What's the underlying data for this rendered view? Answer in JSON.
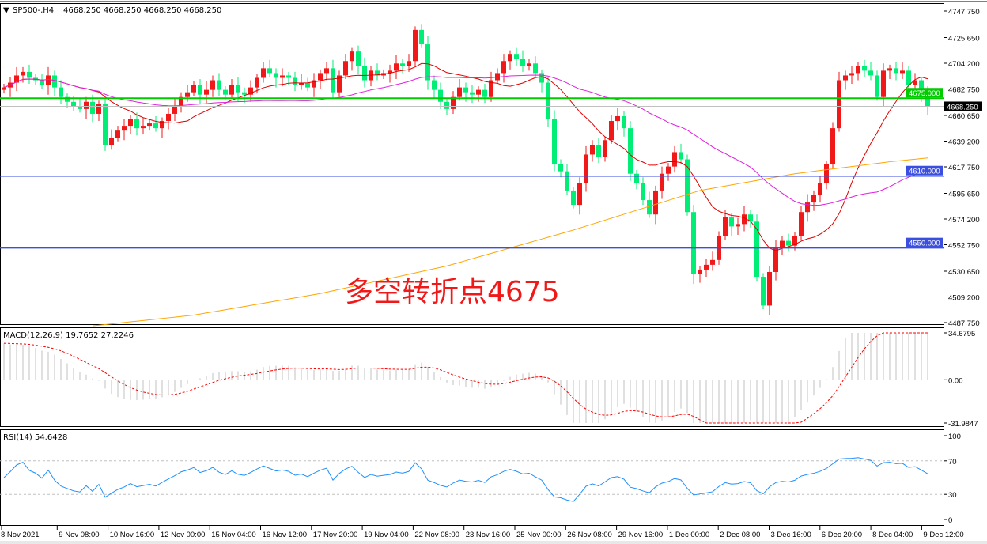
{
  "header": {
    "symbol_label": "SP500-,H4",
    "ohlc_text": "4668.250 4668.250 4668.250 4668.250"
  },
  "annotation": "多空转折点4675",
  "colors": {
    "bull": "#f01818",
    "bear": "#00ee76",
    "ma_fast": "#e00000",
    "ma_mid": "#e020e0",
    "ma_slow": "#ffa500",
    "level_green": "#00cc00",
    "level_blue": "#3a4ee0",
    "macd_hist": "#c0c0c0",
    "macd_signal": "#ff0000",
    "rsi": "#1e90ff"
  },
  "chart_data": [
    {
      "type": "candlestick",
      "title": "SP500-,H4",
      "ylim": [
        4487.75,
        4747.75
      ],
      "y_ticks": [
        "4747.750",
        "4725.650",
        "4704.200",
        "4682.750",
        "4660.650",
        "4639.200",
        "4617.750",
        "4595.650",
        "4574.200",
        "4552.750",
        "4530.650",
        "4509.200",
        "4487.750"
      ],
      "x_ticks": [
        "8 Nov 2021",
        "9 Nov 08:00",
        "10 Nov 16:00",
        "12 Nov 00:00",
        "15 Nov 04:00",
        "16 Nov 12:00",
        "17 Nov 20:00",
        "19 Nov 04:00",
        "22 Nov 08:00",
        "23 Nov 16:00",
        "25 Nov 00:00",
        "26 Nov 08:00",
        "29 Nov 16:00",
        "1 Dec 00:00",
        "2 Dec 08:00",
        "3 Dec 16:00",
        "6 Dec 20:00",
        "8 Dec 04:00",
        "9 Dec 12:00"
      ],
      "close": [
        4684,
        4688,
        4694,
        4697,
        4692,
        4690,
        4686,
        4694,
        4684,
        4676,
        4672,
        4668,
        4666,
        4672,
        4662,
        4670,
        4636,
        4642,
        4648,
        4652,
        4658,
        4650,
        4652,
        4654,
        4650,
        4656,
        4662,
        4668,
        4676,
        4680,
        4686,
        4678,
        4682,
        4690,
        4682,
        4678,
        4686,
        4680,
        4678,
        4684,
        4692,
        4700,
        4696,
        4692,
        4694,
        4692,
        4686,
        4688,
        4684,
        4690,
        4696,
        4700,
        4680,
        4694,
        4706,
        4714,
        4702,
        4690,
        4698,
        4694,
        4696,
        4698,
        4704,
        4702,
        4706,
        4732,
        4720,
        4690,
        4682,
        4672,
        4666,
        4676,
        4684,
        4680,
        4678,
        4682,
        4676,
        4690,
        4696,
        4706,
        4712,
        4708,
        4702,
        4704,
        4696,
        4688,
        4658,
        4620,
        4614,
        4598,
        4586,
        4604,
        4628,
        4636,
        4626,
        4640,
        4656,
        4660,
        4650,
        4612,
        4604,
        4590,
        4578,
        4598,
        4612,
        4618,
        4630,
        4624,
        4580,
        4528,
        4532,
        4536,
        4540,
        4560,
        4576,
        4568,
        4570,
        4578,
        4572,
        4526,
        4502,
        4530,
        4550,
        4556,
        4552,
        4560,
        4580,
        4588,
        4594,
        4604,
        4620,
        4650,
        4690,
        4694,
        4696,
        4702,
        4698,
        4694,
        4676,
        4698,
        4700,
        4696,
        4698,
        4686,
        4690,
        4680,
        4668.25
      ],
      "ma_slow": [
        [
          14,
          4485
        ],
        [
          30,
          4494
        ],
        [
          50,
          4512
        ],
        [
          70,
          4535
        ],
        [
          90,
          4565
        ],
        [
          110,
          4598
        ],
        [
          125,
          4612
        ],
        [
          140,
          4622
        ],
        [
          155,
          4630
        ],
        [
          175,
          4638
        ],
        [
          200,
          4645
        ]
      ],
      "levels": [
        {
          "value": "4675.000",
          "color": "green"
        },
        {
          "value": "4610.000",
          "color": "blue"
        },
        {
          "value": "4550.000",
          "color": "blue"
        }
      ],
      "current_price": "4668.250"
    },
    {
      "type": "line",
      "title": "MACD(12,26,9) 19.7652 27.2246",
      "ylim": [
        -31.9847,
        34.6795
      ],
      "y_ticks": [
        "34.6795",
        "0.00",
        "-31.9847"
      ]
    },
    {
      "type": "line",
      "title": "RSI(14) 54.6428",
      "ylim": [
        0,
        100
      ],
      "y_ticks": [
        "100",
        "70",
        "30",
        "0"
      ]
    }
  ]
}
